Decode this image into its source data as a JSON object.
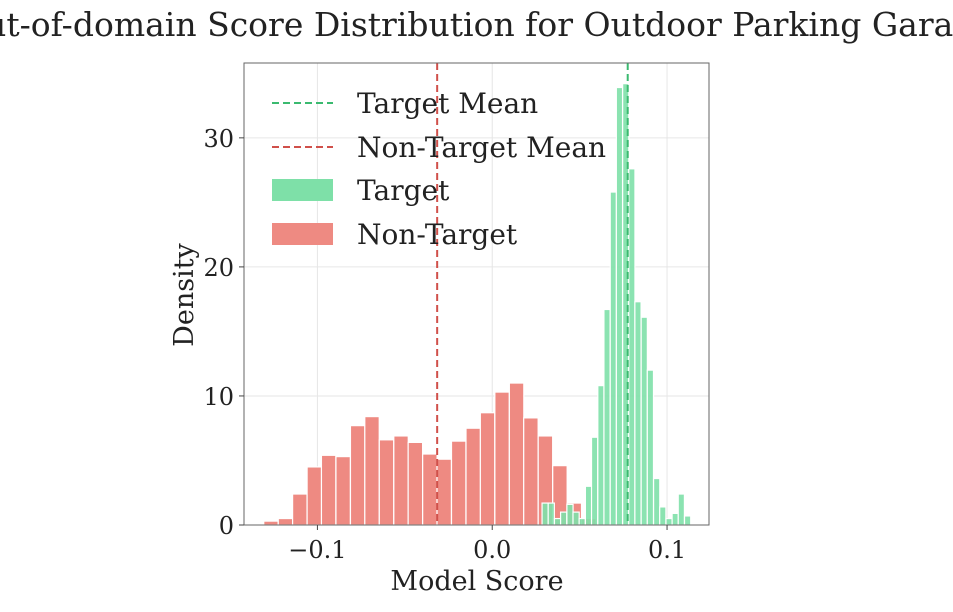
{
  "chart_data": {
    "type": "bar",
    "title": "Out-of-domain Score Distribution for Outdoor Parking Garage",
    "xlabel": "Model Score",
    "ylabel": "Density",
    "xlim": [
      -0.142,
      0.124
    ],
    "ylim": [
      0,
      35.8
    ],
    "xticks": [
      -0.1,
      0.0,
      0.1
    ],
    "xtick_labels": [
      "−0.1",
      "0.0",
      "0.1"
    ],
    "yticks": [
      0,
      10,
      20,
      30
    ],
    "ytick_labels": [
      "0",
      "10",
      "20",
      "30"
    ],
    "grid": true,
    "legend_position": "top-left",
    "series": [
      {
        "name": "Non-Target",
        "kind": "histogram",
        "color": "#ee8a82",
        "bin_width": 0.00826,
        "bin_starts": [
          -0.1307,
          -0.1224,
          -0.1142,
          -0.1059,
          -0.0977,
          -0.0894,
          -0.0811,
          -0.0729,
          -0.0646,
          -0.0563,
          -0.0481,
          -0.0398,
          -0.0316,
          -0.0233,
          -0.015,
          -0.0068,
          0.0015,
          0.0098,
          0.018,
          0.0263,
          0.0346,
          0.0428,
          0.0511
        ],
        "values": [
          0.3,
          0.5,
          2.4,
          4.5,
          5.4,
          5.3,
          7.7,
          8.4,
          6.6,
          6.9,
          6.4,
          5.5,
          5.1,
          6.5,
          7.5,
          8.7,
          10.3,
          11.0,
          8.3,
          6.9,
          4.6,
          1.7,
          0.5
        ]
      },
      {
        "name": "Target",
        "kind": "histogram",
        "color": "#7ee0a8",
        "bin_width": 0.00354,
        "bin_starts": [
          0.0285,
          0.032,
          0.0356,
          0.0391,
          0.0427,
          0.0462,
          0.0497,
          0.0533,
          0.0568,
          0.0604,
          0.0639,
          0.0675,
          0.071,
          0.0746,
          0.0781,
          0.0816,
          0.0852,
          0.0887,
          0.0923,
          0.0958,
          0.0994,
          0.1029,
          0.1064,
          0.11
        ],
        "values": [
          1.7,
          1.7,
          0.5,
          1.0,
          1.6,
          1.0,
          0.5,
          3.0,
          6.8,
          10.8,
          16.7,
          25.8,
          33.9,
          34.2,
          27.6,
          17.3,
          16.1,
          12.0,
          3.6,
          1.4,
          0.5,
          0.9,
          2.4,
          0.7
        ]
      }
    ],
    "mean_lines": [
      {
        "name": "Target Mean",
        "value": 0.0775,
        "color": "#3bba70",
        "style": "dashed"
      },
      {
        "name": "Non-Target Mean",
        "value": -0.0315,
        "color": "#d0504a",
        "style": "dashed"
      }
    ],
    "legend": [
      {
        "label": "Target Mean",
        "kind": "line",
        "color": "#3bba70"
      },
      {
        "label": "Non-Target Mean",
        "kind": "line",
        "color": "#d0504a"
      },
      {
        "label": "Target",
        "kind": "patch",
        "color": "#7ee0a8"
      },
      {
        "label": "Non-Target",
        "kind": "patch",
        "color": "#ee8a82"
      }
    ]
  }
}
